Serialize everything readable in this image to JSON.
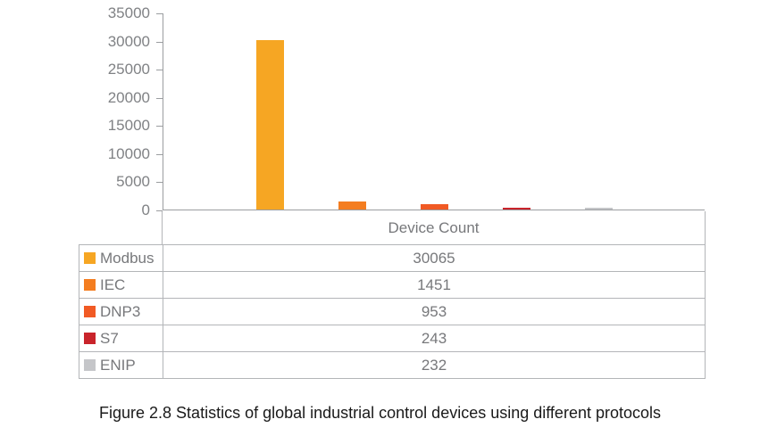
{
  "chart_data": {
    "type": "bar",
    "categories": [
      "Modbus",
      "IEC",
      "DNP3",
      "S7",
      "ENIP"
    ],
    "values": [
      30065,
      1451,
      953,
      243,
      232
    ],
    "colors": [
      "#F6A623",
      "#F47D20",
      "#F15A24",
      "#C9242B",
      "#C5C6C9"
    ],
    "ylim": [
      0,
      35000
    ],
    "ytick_step": 5000,
    "ytick_labels": [
      "0",
      "5000",
      "10000",
      "15000",
      "20000",
      "25000",
      "30000",
      "35000"
    ],
    "grid": false,
    "legend_position": "table-left",
    "table_header": "Device Count"
  },
  "caption": "Figure 2.8 Statistics of global industrial control devices using different protocols",
  "colors": {
    "axis": "#9B9DA0",
    "table_border": "#B3B5B8",
    "tick_text": "#808285",
    "table_text": "#77787B",
    "caption_text": "#1A1A1A"
  }
}
